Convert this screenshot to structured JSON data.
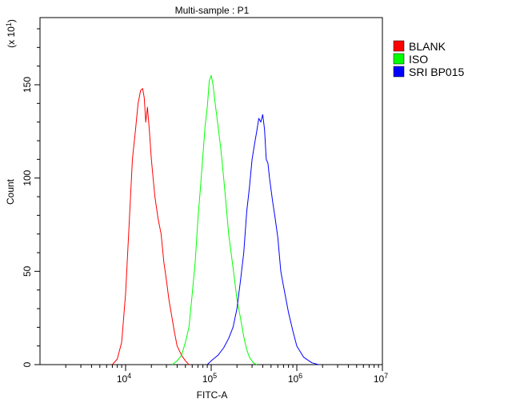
{
  "chart_data": {
    "type": "line",
    "title": "Multi-sample : P1",
    "xlabel": "FITC-A",
    "ylabel": "Count",
    "y_multiplier": "(x 10",
    "y_multiplier_exp": "1",
    "y_multiplier_close": ")",
    "x_scale": "log",
    "xlim": [
      1000,
      10000000
    ],
    "ylim": [
      0,
      186
    ],
    "x_ticks": [
      {
        "value": 10000,
        "base": "10",
        "exp": "4"
      },
      {
        "value": 100000,
        "base": "10",
        "exp": "5"
      },
      {
        "value": 1000000,
        "base": "10",
        "exp": "6"
      },
      {
        "value": 10000000,
        "base": "10",
        "exp": "7"
      }
    ],
    "y_ticks": [
      {
        "value": 0,
        "label": "0"
      },
      {
        "value": 50,
        "label": "50"
      },
      {
        "value": 100,
        "label": "100"
      },
      {
        "value": 150,
        "label": "150"
      }
    ],
    "grid": false,
    "legend_position": "top-right",
    "series": [
      {
        "name": "BLANK",
        "color": "#ff0000",
        "x": [
          7000,
          8000,
          9000,
          10000,
          11000,
          12000,
          13000,
          14000,
          15000,
          15800,
          16500,
          17200,
          18000,
          19000,
          20000,
          22000,
          24000,
          26000,
          28000,
          30000,
          32000,
          34000,
          37000,
          40000,
          45000,
          50000,
          55000
        ],
        "y": [
          0,
          3,
          12,
          38,
          75,
          110,
          125,
          140,
          147,
          148,
          143,
          130,
          138,
          125,
          110,
          90,
          78,
          70,
          55,
          45,
          35,
          28,
          18,
          10,
          5,
          2,
          0
        ]
      },
      {
        "name": "ISO",
        "color": "#00ff00",
        "x": [
          35000,
          40000,
          45000,
          50000,
          55000,
          60000,
          65000,
          70000,
          75000,
          80000,
          85000,
          90000,
          95000,
          100000,
          105000,
          110000,
          120000,
          130000,
          140000,
          150000,
          160000,
          180000,
          200000,
          220000,
          240000,
          260000,
          280000,
          310000,
          340000
        ],
        "y": [
          0,
          2,
          5,
          12,
          20,
          38,
          55,
          78,
          95,
          112,
          128,
          138,
          152,
          155,
          150,
          142,
          128,
          115,
          100,
          85,
          70,
          52,
          35,
          25,
          15,
          8,
          4,
          1,
          0
        ]
      },
      {
        "name": "SRI BP015",
        "color": "#0000ff",
        "x": [
          90000,
          100000,
          120000,
          140000,
          160000,
          180000,
          200000,
          220000,
          240000,
          260000,
          280000,
          300000,
          320000,
          340000,
          360000,
          380000,
          400000,
          420000,
          440000,
          460000,
          480000,
          520000,
          560000,
          600000,
          650000,
          700000,
          800000,
          900000,
          1000000,
          1200000,
          1500000,
          1800000
        ],
        "y": [
          0,
          2,
          5,
          9,
          14,
          20,
          30,
          45,
          60,
          82,
          95,
          110,
          118,
          125,
          132,
          130,
          134,
          126,
          110,
          108,
          100,
          88,
          78,
          68,
          50,
          42,
          28,
          18,
          10,
          4,
          1,
          0
        ]
      }
    ]
  }
}
